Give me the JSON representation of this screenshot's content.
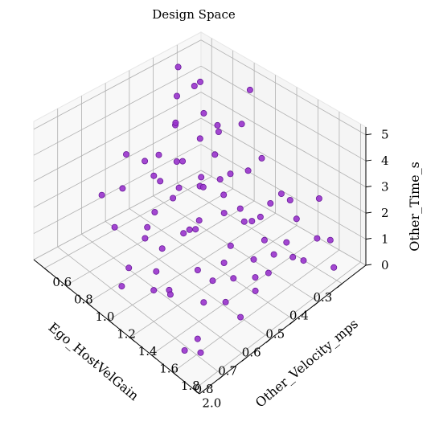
{
  "chart_data": {
    "type": "scatter",
    "projection": "3d",
    "title": "Design Space",
    "xlabel": "Ego_HostVelGain",
    "ylabel": "Other_Velocity_mps",
    "zlabel": "Other_Time_s",
    "xlim": [
      0.2,
      0.9
    ],
    "ylim": [
      0.5,
      2.05
    ],
    "zlim": [
      0,
      5.3
    ],
    "x_ticks": [
      0.3,
      0.4,
      0.5,
      0.6,
      0.7,
      0.8
    ],
    "x_tick_labels": [
      "0.3",
      "0.4",
      "0.5",
      "0.6",
      "0.7",
      "0.8"
    ],
    "y_ticks": [
      0.6,
      0.8,
      1.0,
      1.2,
      1.4,
      1.6,
      1.8,
      2.0
    ],
    "y_tick_labels": [
      "0.6",
      "0.8",
      "1.0",
      "1.2",
      "1.4",
      "1.6",
      "1.8",
      "2.0"
    ],
    "z_ticks": [
      0,
      1,
      2,
      3,
      4,
      5
    ],
    "z_tick_labels": [
      "0",
      "1",
      "2",
      "3",
      "4",
      "5"
    ],
    "grid": true,
    "marker_color": "#9933cc",
    "marker_edge": "#6a1b9a",
    "points": [
      {
        "x": 0.85,
        "y": 1.95,
        "z": 0.9
      },
      {
        "x": 0.85,
        "y": 1.8,
        "z": 0.5
      },
      {
        "x": 0.84,
        "y": 1.9,
        "z": 1.2
      },
      {
        "x": 0.82,
        "y": 1.6,
        "z": 1.8
      },
      {
        "x": 0.78,
        "y": 1.5,
        "z": 1.4
      },
      {
        "x": 0.8,
        "y": 1.4,
        "z": 1.2
      },
      {
        "x": 0.75,
        "y": 1.7,
        "z": 2.6
      },
      {
        "x": 0.72,
        "y": 1.5,
        "z": 3.2
      },
      {
        "x": 0.7,
        "y": 1.85,
        "z": 1.5
      },
      {
        "x": 0.68,
        "y": 1.6,
        "z": 0.6
      },
      {
        "x": 0.72,
        "y": 1.3,
        "z": 2.0
      },
      {
        "x": 0.66,
        "y": 1.9,
        "z": 0.8
      },
      {
        "x": 0.65,
        "y": 1.4,
        "z": 2.6
      },
      {
        "x": 0.63,
        "y": 1.2,
        "z": 3.1
      },
      {
        "x": 0.6,
        "y": 1.7,
        "z": 1.3
      },
      {
        "x": 0.62,
        "y": 1.55,
        "z": 0.9
      },
      {
        "x": 0.58,
        "y": 1.3,
        "z": 1.9
      },
      {
        "x": 0.56,
        "y": 1.1,
        "z": 2.8
      },
      {
        "x": 0.55,
        "y": 1.5,
        "z": 1.0
      },
      {
        "x": 0.6,
        "y": 1.0,
        "z": 4.0
      },
      {
        "x": 0.53,
        "y": 1.75,
        "z": 0.5
      },
      {
        "x": 0.52,
        "y": 1.2,
        "z": 1.6
      },
      {
        "x": 0.5,
        "y": 1.0,
        "z": 3.2
      },
      {
        "x": 0.5,
        "y": 1.45,
        "z": 1.2
      },
      {
        "x": 0.48,
        "y": 0.9,
        "z": 2.8
      },
      {
        "x": 0.47,
        "y": 1.6,
        "z": 0.9
      },
      {
        "x": 0.46,
        "y": 1.3,
        "z": 1.8
      },
      {
        "x": 0.45,
        "y": 1.05,
        "z": 2.1
      },
      {
        "x": 0.44,
        "y": 0.8,
        "z": 3.8
      },
      {
        "x": 0.43,
        "y": 1.7,
        "z": 1.1
      },
      {
        "x": 0.42,
        "y": 1.4,
        "z": 1.5
      },
      {
        "x": 0.41,
        "y": 1.15,
        "z": 2.4
      },
      {
        "x": 0.4,
        "y": 0.95,
        "z": 1.9
      },
      {
        "x": 0.39,
        "y": 0.7,
        "z": 4.3
      },
      {
        "x": 0.38,
        "y": 1.5,
        "z": 0.8
      },
      {
        "x": 0.37,
        "y": 1.25,
        "z": 1.3
      },
      {
        "x": 0.36,
        "y": 0.85,
        "z": 2.9
      },
      {
        "x": 0.35,
        "y": 1.8,
        "z": 0.6
      },
      {
        "x": 0.35,
        "y": 1.05,
        "z": 1.2
      },
      {
        "x": 0.34,
        "y": 0.6,
        "z": 4.9
      },
      {
        "x": 0.33,
        "y": 1.35,
        "z": 1.0
      },
      {
        "x": 0.32,
        "y": 0.9,
        "z": 2.2
      },
      {
        "x": 0.31,
        "y": 1.55,
        "z": 0.4
      },
      {
        "x": 0.3,
        "y": 1.0,
        "z": 1.6
      },
      {
        "x": 0.3,
        "y": 0.75,
        "z": 3.3
      },
      {
        "x": 0.29,
        "y": 1.95,
        "z": 0.3
      },
      {
        "x": 0.28,
        "y": 1.25,
        "z": 2.7
      },
      {
        "x": 0.27,
        "y": 0.65,
        "z": 4.1
      },
      {
        "x": 0.27,
        "y": 1.1,
        "z": 1.8
      },
      {
        "x": 0.26,
        "y": 0.8,
        "z": 2.5
      },
      {
        "x": 0.25,
        "y": 1.45,
        "z": 1.4
      },
      {
        "x": 0.25,
        "y": 0.55,
        "z": 3.6
      },
      {
        "x": 0.24,
        "y": 1.7,
        "z": 2.0
      },
      {
        "x": 0.23,
        "y": 0.95,
        "z": 3.0
      },
      {
        "x": 0.22,
        "y": 1.3,
        "z": 1.1
      },
      {
        "x": 0.22,
        "y": 0.7,
        "z": 2.3
      },
      {
        "x": 0.68,
        "y": 1.05,
        "z": 1.4
      },
      {
        "x": 0.64,
        "y": 0.75,
        "z": 2.2
      },
      {
        "x": 0.58,
        "y": 0.65,
        "z": 2.9
      },
      {
        "x": 0.74,
        "y": 0.9,
        "z": 1.7
      },
      {
        "x": 0.7,
        "y": 1.2,
        "z": 0.7
      },
      {
        "x": 0.55,
        "y": 0.85,
        "z": 1.1
      },
      {
        "x": 0.48,
        "y": 0.6,
        "z": 2.0
      },
      {
        "x": 0.44,
        "y": 1.9,
        "z": 1.6
      },
      {
        "x": 0.4,
        "y": 1.6,
        "z": 2.6
      },
      {
        "x": 0.36,
        "y": 1.95,
        "z": 1.9
      },
      {
        "x": 0.52,
        "y": 1.85,
        "z": 1.4
      },
      {
        "x": 0.62,
        "y": 1.95,
        "z": 2.2
      },
      {
        "x": 0.8,
        "y": 1.1,
        "z": 0.4
      },
      {
        "x": 0.86,
        "y": 1.3,
        "z": 2.1
      },
      {
        "x": 0.33,
        "y": 0.55,
        "z": 2.5
      },
      {
        "x": 0.29,
        "y": 1.6,
        "z": 1.3
      },
      {
        "x": 0.46,
        "y": 0.7,
        "z": 1.4
      },
      {
        "x": 0.57,
        "y": 1.35,
        "z": 3.6
      },
      {
        "x": 0.76,
        "y": 1.25,
        "z": 2.9
      },
      {
        "x": 0.24,
        "y": 1.05,
        "z": 4.6
      },
      {
        "x": 0.26,
        "y": 1.85,
        "z": 0.9
      },
      {
        "x": 0.42,
        "y": 0.55,
        "z": 1.0
      },
      {
        "x": 0.5,
        "y": 1.65,
        "z": 2.7
      },
      {
        "x": 0.66,
        "y": 0.6,
        "z": 1.6
      }
    ]
  }
}
